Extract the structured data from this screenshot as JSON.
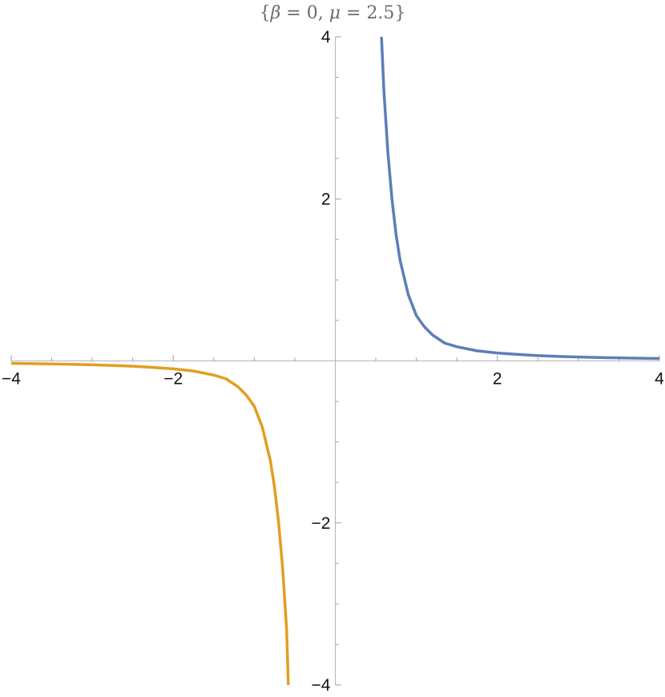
{
  "chart_data": {
    "type": "line",
    "title": "{β = 0, μ = 2.5}",
    "title_parts": {
      "open": "{",
      "beta": "β",
      "eq1": " = ",
      "beta_val": "0",
      "sep": ", ",
      "mu": "μ",
      "eq2": " = ",
      "mu_val": "2.5",
      "close": "}"
    },
    "xlim": [
      -4,
      4
    ],
    "ylim": [
      -4,
      4
    ],
    "grid": false,
    "x_ticks": [
      {
        "value": -4,
        "label": "−4"
      },
      {
        "value": -2,
        "label": "−2"
      },
      {
        "value": 2,
        "label": "2"
      },
      {
        "value": 4,
        "label": "4"
      }
    ],
    "y_ticks": [
      {
        "value": 4,
        "label": "4"
      },
      {
        "value": 2,
        "label": "2"
      },
      {
        "value": -2,
        "label": "−2"
      },
      {
        "value": -4,
        "label": "−4"
      }
    ],
    "minor_step": 0.5,
    "series": [
      {
        "color": "#5b7fb7",
        "x": [
          0.57,
          0.6,
          0.65,
          0.7,
          0.75,
          0.8,
          0.9,
          1.0,
          1.1,
          1.2,
          1.35,
          1.5,
          1.75,
          2.0,
          2.25,
          2.5,
          2.75,
          3.0,
          3.25,
          3.5,
          3.75,
          4.0
        ],
        "y": [
          4.0,
          3.33,
          2.56,
          1.99,
          1.56,
          1.24,
          0.82,
          0.56,
          0.42,
          0.32,
          0.22,
          0.175,
          0.125,
          0.098,
          0.08,
          0.066,
          0.056,
          0.048,
          0.042,
          0.037,
          0.033,
          0.03
        ]
      },
      {
        "color": "#e39d22",
        "x": [
          -4.0,
          -3.75,
          -3.5,
          -3.25,
          -3.0,
          -2.75,
          -2.5,
          -2.25,
          -2.0,
          -1.75,
          -1.5,
          -1.35,
          -1.2,
          -1.1,
          -1.0,
          -0.9,
          -0.8,
          -0.75,
          -0.7,
          -0.65,
          -0.6,
          -0.58
        ],
        "y": [
          -0.03,
          -0.033,
          -0.037,
          -0.042,
          -0.048,
          -0.056,
          -0.066,
          -0.08,
          -0.098,
          -0.125,
          -0.175,
          -0.22,
          -0.32,
          -0.42,
          -0.56,
          -0.82,
          -1.24,
          -1.56,
          -1.99,
          -2.56,
          -3.33,
          -4.0
        ]
      }
    ]
  }
}
